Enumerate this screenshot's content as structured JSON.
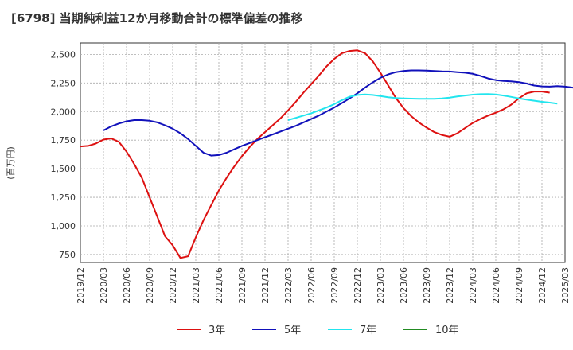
{
  "chart_data": {
    "type": "line",
    "title": "[6798]  当期純利益12か月移動合計の標準偏差の推移",
    "ylabel": "(百万円)",
    "xlabel": "",
    "ylim": [
      680,
      2600
    ],
    "y_ticks": [
      750,
      1000,
      1250,
      1500,
      1750,
      2000,
      2250,
      2500
    ],
    "y_tick_labels": [
      "750",
      "1,000",
      "1,250",
      "1,500",
      "1,750",
      "2,000",
      "2,250",
      "2,500"
    ],
    "x_tick_labels": [
      "2019/12",
      "2020/03",
      "2020/06",
      "2020/09",
      "2020/12",
      "2021/03",
      "2021/06",
      "2021/09",
      "2021/12",
      "2022/03",
      "2022/06",
      "2022/09",
      "2022/12",
      "2023/03",
      "2023/06",
      "2023/09",
      "2023/12",
      "2024/03",
      "2024/06",
      "2024/09",
      "2024/12",
      "2025/03"
    ],
    "grid": true,
    "legend_position": "bottom",
    "series": [
      {
        "name": "3年",
        "color": "#dd1111",
        "points": [
          {
            "x": 0,
            "y": 1695
          },
          {
            "x": 1,
            "y": 1700
          },
          {
            "x": 2,
            "y": 1720
          },
          {
            "x": 3,
            "y": 1755
          },
          {
            "x": 4,
            "y": 1765
          },
          {
            "x": 5,
            "y": 1735
          },
          {
            "x": 6,
            "y": 1650
          },
          {
            "x": 7,
            "y": 1540
          },
          {
            "x": 8,
            "y": 1420
          },
          {
            "x": 9,
            "y": 1250
          },
          {
            "x": 10,
            "y": 1080
          },
          {
            "x": 11,
            "y": 910
          },
          {
            "x": 12,
            "y": 830
          },
          {
            "x": 13,
            "y": 720
          },
          {
            "x": 14,
            "y": 735
          },
          {
            "x": 15,
            "y": 900
          },
          {
            "x": 16,
            "y": 1050
          },
          {
            "x": 17,
            "y": 1180
          },
          {
            "x": 18,
            "y": 1310
          },
          {
            "x": 19,
            "y": 1420
          },
          {
            "x": 20,
            "y": 1520
          },
          {
            "x": 21,
            "y": 1610
          },
          {
            "x": 22,
            "y": 1690
          },
          {
            "x": 23,
            "y": 1760
          },
          {
            "x": 24,
            "y": 1820
          },
          {
            "x": 25,
            "y": 1880
          },
          {
            "x": 26,
            "y": 1940
          },
          {
            "x": 27,
            "y": 2010
          },
          {
            "x": 28,
            "y": 2085
          },
          {
            "x": 29,
            "y": 2165
          },
          {
            "x": 30,
            "y": 2240
          },
          {
            "x": 31,
            "y": 2315
          },
          {
            "x": 32,
            "y": 2395
          },
          {
            "x": 33,
            "y": 2460
          },
          {
            "x": 34,
            "y": 2510
          },
          {
            "x": 35,
            "y": 2530
          },
          {
            "x": 36,
            "y": 2535
          },
          {
            "x": 37,
            "y": 2510
          },
          {
            "x": 38,
            "y": 2440
          },
          {
            "x": 39,
            "y": 2340
          },
          {
            "x": 40,
            "y": 2230
          },
          {
            "x": 41,
            "y": 2120
          },
          {
            "x": 42,
            "y": 2030
          },
          {
            "x": 43,
            "y": 1960
          },
          {
            "x": 44,
            "y": 1905
          },
          {
            "x": 45,
            "y": 1860
          },
          {
            "x": 46,
            "y": 1820
          },
          {
            "x": 47,
            "y": 1795
          },
          {
            "x": 48,
            "y": 1780
          },
          {
            "x": 49,
            "y": 1810
          },
          {
            "x": 50,
            "y": 1855
          },
          {
            "x": 51,
            "y": 1900
          },
          {
            "x": 52,
            "y": 1935
          },
          {
            "x": 53,
            "y": 1965
          },
          {
            "x": 54,
            "y": 1990
          },
          {
            "x": 55,
            "y": 2020
          },
          {
            "x": 56,
            "y": 2060
          },
          {
            "x": 57,
            "y": 2115
          },
          {
            "x": 58,
            "y": 2160
          },
          {
            "x": 59,
            "y": 2175
          },
          {
            "x": 60,
            "y": 2175
          },
          {
            "x": 61,
            "y": 2165
          }
        ]
      },
      {
        "name": "5年",
        "color": "#1111bb",
        "points": [
          {
            "x": 3,
            "y": 1835
          },
          {
            "x": 4,
            "y": 1870
          },
          {
            "x": 5,
            "y": 1895
          },
          {
            "x": 6,
            "y": 1915
          },
          {
            "x": 7,
            "y": 1925
          },
          {
            "x": 8,
            "y": 1925
          },
          {
            "x": 9,
            "y": 1920
          },
          {
            "x": 10,
            "y": 1905
          },
          {
            "x": 11,
            "y": 1880
          },
          {
            "x": 12,
            "y": 1850
          },
          {
            "x": 13,
            "y": 1810
          },
          {
            "x": 14,
            "y": 1760
          },
          {
            "x": 15,
            "y": 1700
          },
          {
            "x": 16,
            "y": 1640
          },
          {
            "x": 17,
            "y": 1615
          },
          {
            "x": 18,
            "y": 1620
          },
          {
            "x": 19,
            "y": 1640
          },
          {
            "x": 20,
            "y": 1670
          },
          {
            "x": 21,
            "y": 1700
          },
          {
            "x": 22,
            "y": 1725
          },
          {
            "x": 23,
            "y": 1750
          },
          {
            "x": 24,
            "y": 1775
          },
          {
            "x": 25,
            "y": 1800
          },
          {
            "x": 26,
            "y": 1825
          },
          {
            "x": 27,
            "y": 1850
          },
          {
            "x": 28,
            "y": 1875
          },
          {
            "x": 29,
            "y": 1905
          },
          {
            "x": 30,
            "y": 1935
          },
          {
            "x": 31,
            "y": 1965
          },
          {
            "x": 32,
            "y": 2000
          },
          {
            "x": 33,
            "y": 2035
          },
          {
            "x": 34,
            "y": 2075
          },
          {
            "x": 35,
            "y": 2115
          },
          {
            "x": 36,
            "y": 2160
          },
          {
            "x": 37,
            "y": 2210
          },
          {
            "x": 38,
            "y": 2255
          },
          {
            "x": 39,
            "y": 2295
          },
          {
            "x": 40,
            "y": 2325
          },
          {
            "x": 41,
            "y": 2345
          },
          {
            "x": 42,
            "y": 2355
          },
          {
            "x": 43,
            "y": 2360
          },
          {
            "x": 44,
            "y": 2360
          },
          {
            "x": 45,
            "y": 2358
          },
          {
            "x": 46,
            "y": 2355
          },
          {
            "x": 47,
            "y": 2352
          },
          {
            "x": 48,
            "y": 2350
          },
          {
            "x": 49,
            "y": 2345
          },
          {
            "x": 50,
            "y": 2340
          },
          {
            "x": 51,
            "y": 2330
          },
          {
            "x": 52,
            "y": 2312
          },
          {
            "x": 53,
            "y": 2290
          },
          {
            "x": 54,
            "y": 2275
          },
          {
            "x": 55,
            "y": 2268
          },
          {
            "x": 56,
            "y": 2265
          },
          {
            "x": 57,
            "y": 2258
          },
          {
            "x": 58,
            "y": 2245
          },
          {
            "x": 59,
            "y": 2228
          },
          {
            "x": 60,
            "y": 2220
          },
          {
            "x": 61,
            "y": 2218
          },
          {
            "x": 62,
            "y": 2222
          },
          {
            "x": 63,
            "y": 2218
          },
          {
            "x": 64,
            "y": 2210
          },
          {
            "x": 65,
            "y": 2200
          }
        ]
      },
      {
        "name": "7年",
        "color": "#22e5ee",
        "points": [
          {
            "x": 27,
            "y": 1925
          },
          {
            "x": 28,
            "y": 1945
          },
          {
            "x": 29,
            "y": 1965
          },
          {
            "x": 30,
            "y": 1985
          },
          {
            "x": 31,
            "y": 2010
          },
          {
            "x": 32,
            "y": 2035
          },
          {
            "x": 33,
            "y": 2065
          },
          {
            "x": 34,
            "y": 2100
          },
          {
            "x": 35,
            "y": 2130
          },
          {
            "x": 36,
            "y": 2145
          },
          {
            "x": 37,
            "y": 2150
          },
          {
            "x": 38,
            "y": 2145
          },
          {
            "x": 39,
            "y": 2135
          },
          {
            "x": 40,
            "y": 2125
          },
          {
            "x": 41,
            "y": 2118
          },
          {
            "x": 42,
            "y": 2115
          },
          {
            "x": 43,
            "y": 2113
          },
          {
            "x": 44,
            "y": 2112
          },
          {
            "x": 45,
            "y": 2112
          },
          {
            "x": 46,
            "y": 2112
          },
          {
            "x": 47,
            "y": 2115
          },
          {
            "x": 48,
            "y": 2122
          },
          {
            "x": 49,
            "y": 2132
          },
          {
            "x": 50,
            "y": 2140
          },
          {
            "x": 51,
            "y": 2148
          },
          {
            "x": 52,
            "y": 2152
          },
          {
            "x": 53,
            "y": 2153
          },
          {
            "x": 54,
            "y": 2150
          },
          {
            "x": 55,
            "y": 2140
          },
          {
            "x": 56,
            "y": 2128
          },
          {
            "x": 57,
            "y": 2115
          },
          {
            "x": 58,
            "y": 2105
          },
          {
            "x": 59,
            "y": 2095
          },
          {
            "x": 60,
            "y": 2085
          },
          {
            "x": 61,
            "y": 2078
          },
          {
            "x": 62,
            "y": 2070
          }
        ]
      },
      {
        "name": "10年",
        "color": "#228b22",
        "points": []
      }
    ]
  }
}
